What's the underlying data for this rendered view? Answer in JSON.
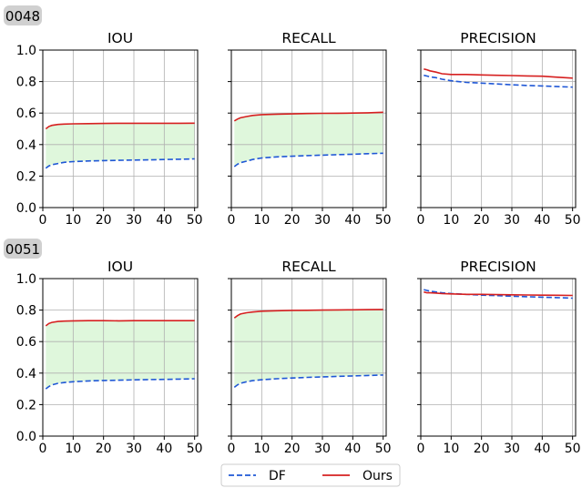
{
  "chart_data": [
    {
      "type": "line",
      "group": "0048",
      "title": "IOU",
      "xlim": [
        0,
        51
      ],
      "ylim": [
        0.0,
        1.0
      ],
      "xticks": [
        "0",
        "10",
        "20",
        "30",
        "40",
        "50"
      ],
      "yticks": [
        "0.0",
        "0.2",
        "0.4",
        "0.6",
        "0.8",
        "1.0"
      ],
      "grid": true,
      "fill_between": true,
      "x": [
        1,
        2,
        3,
        5,
        7,
        10,
        15,
        20,
        25,
        30,
        35,
        40,
        45,
        50
      ],
      "series": [
        {
          "name": "DF",
          "values": [
            0.25,
            0.265,
            0.272,
            0.28,
            0.287,
            0.292,
            0.296,
            0.298,
            0.3,
            0.302,
            0.303,
            0.305,
            0.307,
            0.309
          ]
        },
        {
          "name": "Ours",
          "values": [
            0.5,
            0.515,
            0.522,
            0.528,
            0.53,
            0.532,
            0.533,
            0.534,
            0.535,
            0.535,
            0.535,
            0.535,
            0.535,
            0.536
          ]
        }
      ]
    },
    {
      "type": "line",
      "group": "0048",
      "title": "RECALL",
      "xlim": [
        0,
        51
      ],
      "ylim": [
        0.0,
        1.0
      ],
      "xticks": [
        "0",
        "10",
        "20",
        "30",
        "40",
        "50"
      ],
      "yticks": [
        "0.0",
        "0.2",
        "0.4",
        "0.6",
        "0.8",
        "1.0"
      ],
      "grid": true,
      "fill_between": true,
      "x": [
        1,
        2,
        3,
        5,
        7,
        10,
        15,
        20,
        25,
        30,
        35,
        40,
        45,
        50
      ],
      "series": [
        {
          "name": "DF",
          "values": [
            0.26,
            0.275,
            0.285,
            0.295,
            0.305,
            0.315,
            0.322,
            0.326,
            0.33,
            0.333,
            0.336,
            0.339,
            0.342,
            0.345
          ]
        },
        {
          "name": "Ours",
          "values": [
            0.55,
            0.562,
            0.57,
            0.578,
            0.585,
            0.59,
            0.593,
            0.595,
            0.597,
            0.598,
            0.599,
            0.6,
            0.602,
            0.605
          ]
        }
      ]
    },
    {
      "type": "line",
      "group": "0048",
      "title": "PRECISION",
      "xlim": [
        0,
        51
      ],
      "ylim": [
        0.0,
        1.0
      ],
      "xticks": [
        "0",
        "10",
        "20",
        "30",
        "40",
        "50"
      ],
      "yticks": [
        "0.0",
        "0.2",
        "0.4",
        "0.6",
        "0.8",
        "1.0"
      ],
      "grid": true,
      "fill_between": false,
      "x": [
        1,
        2,
        3,
        5,
        7,
        10,
        15,
        20,
        25,
        30,
        35,
        40,
        45,
        50
      ],
      "series": [
        {
          "name": "DF",
          "values": [
            0.84,
            0.835,
            0.83,
            0.825,
            0.815,
            0.805,
            0.795,
            0.79,
            0.785,
            0.78,
            0.775,
            0.772,
            0.768,
            0.765
          ]
        },
        {
          "name": "Ours",
          "values": [
            0.88,
            0.875,
            0.868,
            0.86,
            0.85,
            0.845,
            0.845,
            0.842,
            0.84,
            0.838,
            0.836,
            0.834,
            0.828,
            0.822
          ]
        }
      ]
    },
    {
      "type": "line",
      "group": "0051",
      "title": "IOU",
      "xlim": [
        0,
        51
      ],
      "ylim": [
        0.0,
        1.0
      ],
      "xticks": [
        "0",
        "10",
        "20",
        "30",
        "40",
        "50"
      ],
      "yticks": [
        "0.0",
        "0.2",
        "0.4",
        "0.6",
        "0.8",
        "1.0"
      ],
      "grid": true,
      "fill_between": true,
      "x": [
        1,
        2,
        3,
        5,
        7,
        10,
        15,
        20,
        25,
        30,
        35,
        40,
        45,
        50
      ],
      "series": [
        {
          "name": "DF",
          "values": [
            0.3,
            0.315,
            0.325,
            0.335,
            0.34,
            0.345,
            0.35,
            0.353,
            0.355,
            0.357,
            0.359,
            0.36,
            0.362,
            0.364
          ]
        },
        {
          "name": "Ours",
          "values": [
            0.7,
            0.715,
            0.722,
            0.728,
            0.73,
            0.732,
            0.733,
            0.733,
            0.732,
            0.733,
            0.733,
            0.733,
            0.733,
            0.733
          ]
        }
      ]
    },
    {
      "type": "line",
      "group": "0051",
      "title": "RECALL",
      "xlim": [
        0,
        51
      ],
      "ylim": [
        0.0,
        1.0
      ],
      "xticks": [
        "0",
        "10",
        "20",
        "30",
        "40",
        "50"
      ],
      "yticks": [
        "0.0",
        "0.2",
        "0.4",
        "0.6",
        "0.8",
        "1.0"
      ],
      "grid": true,
      "fill_between": true,
      "x": [
        1,
        2,
        3,
        5,
        7,
        10,
        15,
        20,
        25,
        30,
        35,
        40,
        45,
        50
      ],
      "series": [
        {
          "name": "DF",
          "values": [
            0.31,
            0.325,
            0.335,
            0.345,
            0.352,
            0.358,
            0.364,
            0.369,
            0.373,
            0.376,
            0.379,
            0.382,
            0.385,
            0.388
          ]
        },
        {
          "name": "Ours",
          "values": [
            0.75,
            0.765,
            0.775,
            0.783,
            0.788,
            0.793,
            0.796,
            0.798,
            0.799,
            0.8,
            0.801,
            0.802,
            0.803,
            0.804
          ]
        }
      ]
    },
    {
      "type": "line",
      "group": "0051",
      "title": "PRECISION",
      "xlim": [
        0,
        51
      ],
      "ylim": [
        0.0,
        1.0
      ],
      "xticks": [
        "0",
        "10",
        "20",
        "30",
        "40",
        "50"
      ],
      "yticks": [
        "0.0",
        "0.2",
        "0.4",
        "0.6",
        "0.8",
        "1.0"
      ],
      "grid": true,
      "fill_between": false,
      "x": [
        1,
        2,
        3,
        5,
        7,
        10,
        15,
        20,
        25,
        30,
        35,
        40,
        45,
        50
      ],
      "series": [
        {
          "name": "DF",
          "values": [
            0.93,
            0.925,
            0.92,
            0.915,
            0.91,
            0.905,
            0.9,
            0.895,
            0.892,
            0.888,
            0.885,
            0.882,
            0.879,
            0.876
          ]
        },
        {
          "name": "Ours",
          "values": [
            0.915,
            0.91,
            0.91,
            0.908,
            0.905,
            0.903,
            0.9,
            0.9,
            0.898,
            0.897,
            0.896,
            0.895,
            0.894,
            0.893
          ]
        }
      ]
    }
  ],
  "group_labels": [
    "0048",
    "0051"
  ],
  "legend": {
    "position": "bottom-center",
    "entries": [
      {
        "name": "DF",
        "color": "#1f57d6",
        "style": "dashed"
      },
      {
        "name": "Ours",
        "color": "#d62020",
        "style": "solid"
      }
    ]
  },
  "colors": {
    "df": "#1f57d6",
    "ours": "#d62020",
    "fill": "#dff7dc",
    "grid": "#b0b0b0",
    "group_badge": "#d0d0d0"
  }
}
